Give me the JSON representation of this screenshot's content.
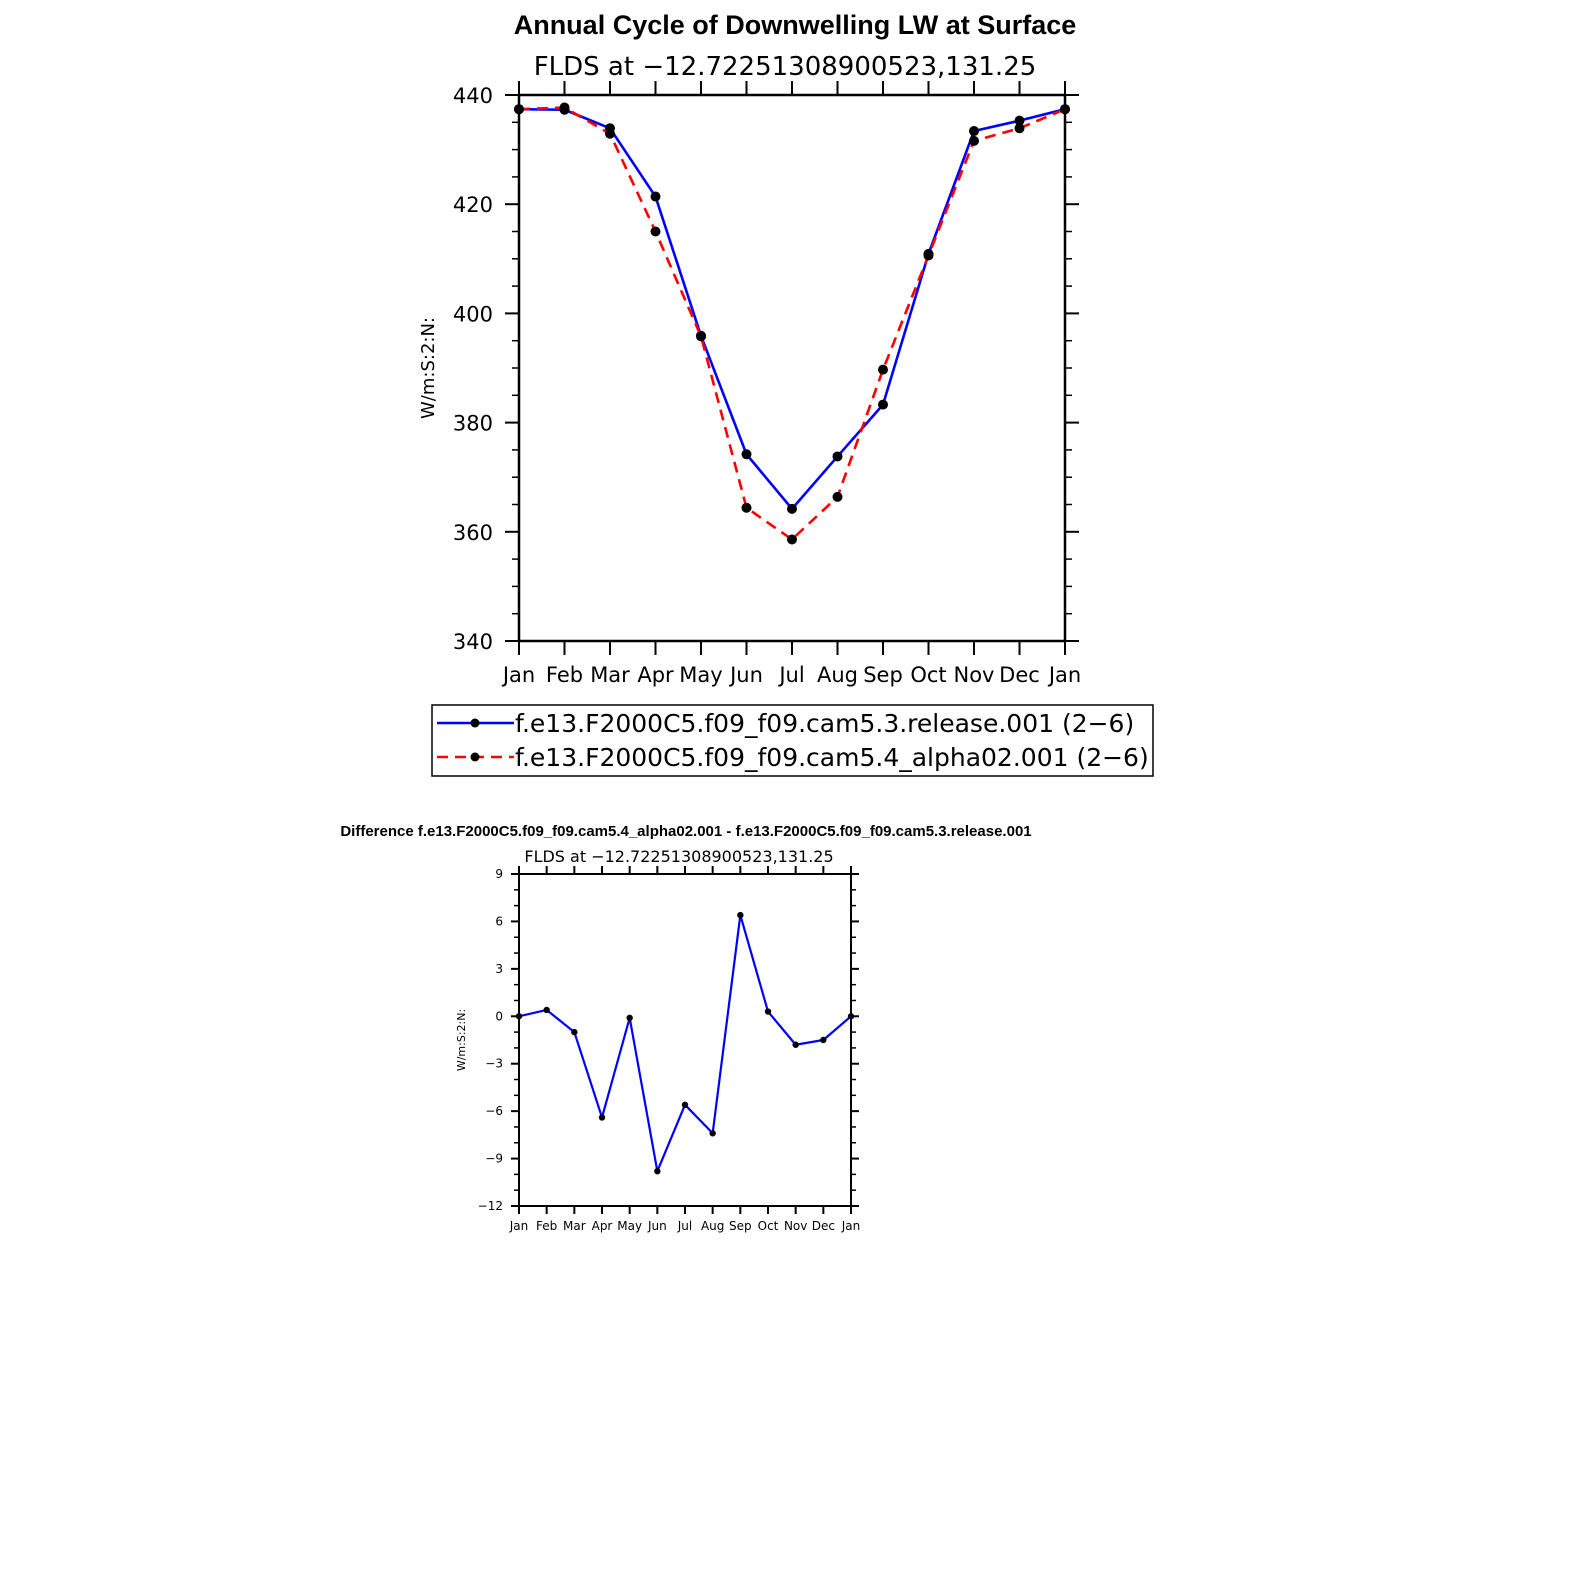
{
  "chart_data": [
    {
      "type": "line",
      "title": "Annual Cycle of Downwelling LW at Surface",
      "subtitle": "FLDS at −12.72251308900523,131.25",
      "xlabel": "",
      "ylabel": "W/m:S:2:N:",
      "categories": [
        "Jan",
        "Feb",
        "Mar",
        "Apr",
        "May",
        "Jun",
        "Jul",
        "Aug",
        "Sep",
        "Oct",
        "Nov",
        "Dec",
        "Jan"
      ],
      "ylim": [
        340,
        440
      ],
      "yticks": [
        340,
        360,
        380,
        400,
        420,
        440
      ],
      "ytick_labels": [
        "340",
        "360",
        "380",
        "400",
        "420",
        "440"
      ],
      "legend_position": "bottom",
      "series": [
        {
          "name": "f.e13.F2000C5.f09_f09.cam5.3.release.001 (2−6)",
          "color": "#0000ff",
          "dash": "solid",
          "values": [
            437.4,
            437.3,
            433.9,
            421.4,
            395.9,
            374.2,
            364.2,
            373.8,
            383.3,
            410.9,
            433.4,
            435.3,
            437.4
          ]
        },
        {
          "name": "f.e13.F2000C5.f09_f09.cam5.4_alpha02.001 (2−6)",
          "color": "#ff0000",
          "dash": "dashed",
          "values": [
            437.4,
            437.7,
            432.9,
            415.0,
            395.8,
            364.4,
            358.6,
            366.4,
            389.7,
            410.6,
            431.6,
            433.9,
            437.4
          ]
        }
      ]
    },
    {
      "type": "line",
      "title": "Difference f.e13.F2000C5.f09_f09.cam5.4_alpha02.001 - f.e13.F2000C5.f09_f09.cam5.3.release.001",
      "subtitle": "FLDS at −12.72251308900523,131.25",
      "xlabel": "",
      "ylabel": "W/m:S:2:N:",
      "categories": [
        "Jan",
        "Feb",
        "Mar",
        "Apr",
        "May",
        "Jun",
        "Jul",
        "Aug",
        "Sep",
        "Oct",
        "Nov",
        "Dec",
        "Jan"
      ],
      "ylim": [
        -12,
        9
      ],
      "yticks": [
        -12,
        -9,
        -6,
        -3,
        0,
        3,
        6,
        9
      ],
      "ytick_labels": [
        "−12",
        "−9",
        "−6",
        "−3",
        "0",
        "3",
        "6",
        "9"
      ],
      "series": [
        {
          "name": "Difference",
          "color": "#0000ff",
          "dash": "solid",
          "values": [
            0.0,
            0.4,
            -1.0,
            -6.4,
            -0.1,
            -9.8,
            -5.6,
            -7.4,
            6.4,
            0.3,
            -1.8,
            -1.5,
            0.0
          ]
        }
      ]
    }
  ]
}
